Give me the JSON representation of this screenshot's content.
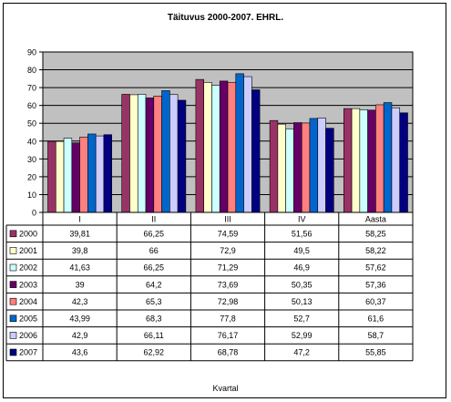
{
  "chart_data": {
    "type": "bar",
    "title": "Täituvus 2000-2007. EHRL.",
    "xlabel": "Kvartal",
    "ylabel": "",
    "ylim": [
      0,
      90
    ],
    "yticks": [
      0,
      10,
      20,
      30,
      40,
      50,
      60,
      70,
      80,
      90
    ],
    "grid": true,
    "legend": "table-bottom",
    "categories": [
      "I",
      "II",
      "III",
      "IV",
      "Aasta"
    ],
    "series": [
      {
        "name": "2000",
        "color": "#993366",
        "values": [
          39.81,
          66.25,
          74.59,
          51.56,
          58.25
        ],
        "labels": [
          "39,81",
          "66,25",
          "74,59",
          "51,56",
          "58,25"
        ]
      },
      {
        "name": "2001",
        "color": "#FFFFCC",
        "values": [
          39.8,
          66,
          72.9,
          49.5,
          58.22
        ],
        "labels": [
          "39,8",
          "66",
          "72,9",
          "49,5",
          "58,22"
        ]
      },
      {
        "name": "2002",
        "color": "#CCFFFF",
        "values": [
          41.63,
          66.25,
          71.29,
          46.9,
          57.62
        ],
        "labels": [
          "41,63",
          "66,25",
          "71,29",
          "46,9",
          "57,62"
        ]
      },
      {
        "name": "2003",
        "color": "#660066",
        "values": [
          39,
          64.2,
          73.69,
          50.35,
          57.36
        ],
        "labels": [
          "39",
          "64,2",
          "73,69",
          "50,35",
          "57,36"
        ]
      },
      {
        "name": "2004",
        "color": "#FF8080",
        "values": [
          42.3,
          65.3,
          72.98,
          50.13,
          60.37
        ],
        "labels": [
          "42,3",
          "65,3",
          "72,98",
          "50,13",
          "60,37"
        ]
      },
      {
        "name": "2005",
        "color": "#0066CC",
        "values": [
          43.99,
          68.3,
          77.8,
          52.7,
          61.6
        ],
        "labels": [
          "43,99",
          "68,3",
          "77,8",
          "52,7",
          "61,6"
        ]
      },
      {
        "name": "2006",
        "color": "#CCCCFF",
        "values": [
          42.9,
          66.11,
          76.17,
          52.99,
          58.7
        ],
        "labels": [
          "42,9",
          "66,11",
          "76,17",
          "52,99",
          "58,7"
        ]
      },
      {
        "name": "2007",
        "color": "#000080",
        "values": [
          43.6,
          62.92,
          68.78,
          47.2,
          55.85
        ],
        "labels": [
          "43,6",
          "62,92",
          "68,78",
          "47,2",
          "55,85"
        ]
      }
    ]
  }
}
